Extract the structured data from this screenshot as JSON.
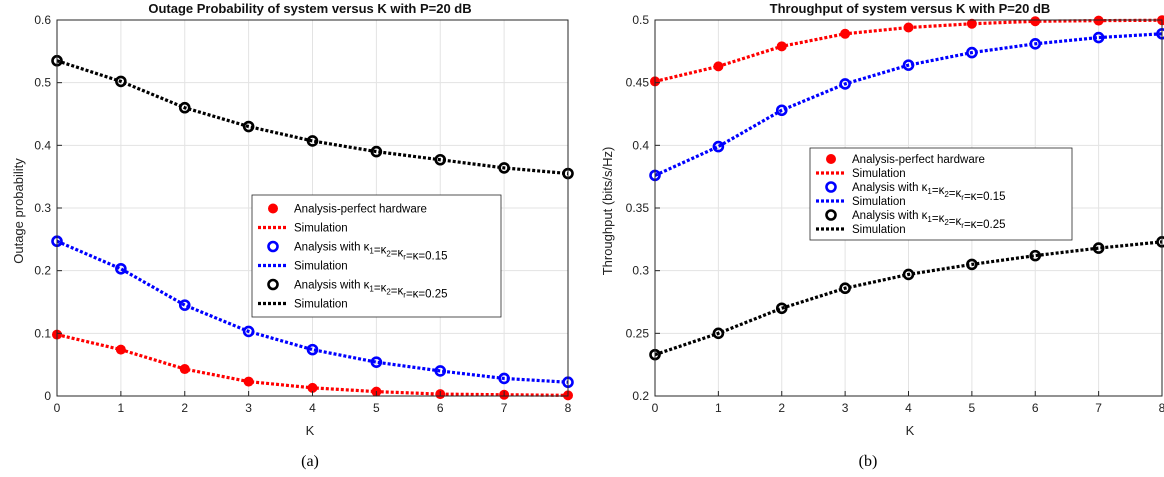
{
  "chart_data": [
    {
      "type": "line",
      "title": "Outage Probability of system versus K with P=20 dB",
      "xlabel": "K",
      "ylabel": "Outage probability",
      "caption": "(a)",
      "xlim": [
        0,
        8
      ],
      "ylim": [
        0,
        0.6
      ],
      "xticks": [
        0,
        1,
        2,
        3,
        4,
        5,
        6,
        7,
        8
      ],
      "yticks": [
        0,
        0.1,
        0.2,
        0.3,
        0.4,
        0.5,
        0.6
      ],
      "grid": true,
      "legend_position": "center-right",
      "x": [
        0,
        1,
        2,
        3,
        4,
        5,
        6,
        7,
        8
      ],
      "series": [
        {
          "name": "Analysis-perfect hardware",
          "style": "filled-dot",
          "color": "#ff0000",
          "values": [
            0.098,
            0.074,
            0.043,
            0.023,
            0.013,
            0.007,
            0.003,
            0.002,
            0.001
          ]
        },
        {
          "name": "Simulation",
          "style": "dotted-line",
          "color": "#ff0000",
          "values": [
            0.098,
            0.074,
            0.043,
            0.023,
            0.013,
            0.007,
            0.003,
            0.002,
            0.001
          ]
        },
        {
          "name": "Analysis with κ1=κ2=κr=κ=0.15",
          "style": "ring",
          "color": "#0000ff",
          "label_parts": [
            "Analysis with ",
            "κ",
            "1",
            "=",
            "κ",
            "2",
            "=",
            "κ",
            "r",
            "=",
            "κ",
            "",
            "=0.15"
          ],
          "values": [
            0.247,
            0.203,
            0.145,
            0.103,
            0.074,
            0.054,
            0.04,
            0.028,
            0.022
          ]
        },
        {
          "name": "Simulation",
          "style": "dotted-line",
          "color": "#0000ff",
          "values": [
            0.247,
            0.203,
            0.145,
            0.103,
            0.074,
            0.054,
            0.04,
            0.028,
            0.022
          ]
        },
        {
          "name": "Analysis with κ1=κ2=κr=κ=0.25",
          "style": "ring",
          "color": "#000000",
          "label_parts": [
            "Analysis with ",
            "κ",
            "1",
            "=",
            "κ",
            "2",
            "=",
            "κ",
            "r",
            "=",
            "κ",
            "",
            "=0.25"
          ],
          "values": [
            0.535,
            0.502,
            0.46,
            0.43,
            0.407,
            0.39,
            0.377,
            0.364,
            0.355
          ]
        },
        {
          "name": "Simulation",
          "style": "dotted-line",
          "color": "#000000",
          "values": [
            0.535,
            0.502,
            0.46,
            0.43,
            0.407,
            0.39,
            0.377,
            0.364,
            0.355
          ]
        }
      ]
    },
    {
      "type": "line",
      "title": "Throughput of system versus K with P=20 dB",
      "xlabel": "K",
      "ylabel": "Throughput (bits/s/Hz)",
      "caption": "(b)",
      "xlim": [
        0,
        8
      ],
      "ylim": [
        0.2,
        0.5
      ],
      "xticks": [
        0,
        1,
        2,
        3,
        4,
        5,
        6,
        7,
        8
      ],
      "yticks": [
        0.2,
        0.25,
        0.3,
        0.35,
        0.4,
        0.45,
        0.5
      ],
      "grid": true,
      "legend_position": "center-right",
      "x": [
        0,
        1,
        2,
        3,
        4,
        5,
        6,
        7,
        8
      ],
      "series": [
        {
          "name": "Analysis-perfect hardware",
          "style": "filled-dot",
          "color": "#ff0000",
          "values": [
            0.451,
            0.463,
            0.479,
            0.489,
            0.494,
            0.497,
            0.499,
            0.4995,
            0.4998
          ]
        },
        {
          "name": "Simulation",
          "style": "dotted-line",
          "color": "#ff0000",
          "values": [
            0.451,
            0.463,
            0.479,
            0.489,
            0.494,
            0.497,
            0.499,
            0.4995,
            0.4998
          ]
        },
        {
          "name": "Analysis with κ1=κ2=κr=κ=0.15",
          "style": "ring",
          "color": "#0000ff",
          "label_parts": [
            "Analysis with ",
            "κ",
            "1",
            "=",
            "κ",
            "2",
            "=",
            "κ",
            "r",
            "=",
            "κ",
            "",
            "=0.15"
          ],
          "values": [
            0.376,
            0.399,
            0.428,
            0.449,
            0.464,
            0.474,
            0.481,
            0.486,
            0.489
          ]
        },
        {
          "name": "Simulation",
          "style": "dotted-line",
          "color": "#0000ff",
          "values": [
            0.376,
            0.399,
            0.428,
            0.449,
            0.464,
            0.474,
            0.481,
            0.486,
            0.489
          ]
        },
        {
          "name": "Analysis with κ1=κ2=κr=κ=0.25",
          "style": "ring",
          "color": "#000000",
          "label_parts": [
            "Analysis with ",
            "κ",
            "1",
            "=",
            "κ",
            "2",
            "=",
            "κ",
            "r",
            "=",
            "κ",
            "",
            "=0.25"
          ],
          "values": [
            0.233,
            0.25,
            0.27,
            0.286,
            0.297,
            0.305,
            0.312,
            0.318,
            0.323
          ]
        },
        {
          "name": "Simulation",
          "style": "dotted-line",
          "color": "#000000",
          "values": [
            0.233,
            0.25,
            0.27,
            0.286,
            0.297,
            0.305,
            0.312,
            0.318,
            0.323
          ]
        }
      ]
    }
  ]
}
